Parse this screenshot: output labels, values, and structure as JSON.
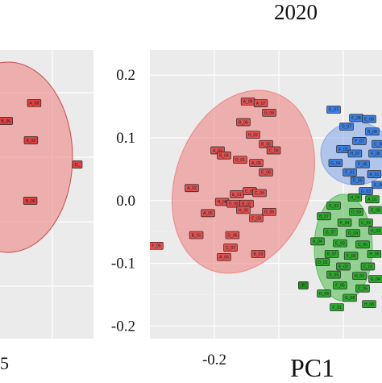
{
  "chart_data": [
    {
      "type": "scatter",
      "title": "",
      "xlabel": "",
      "ylabel": "",
      "x_tick_labels": [],
      "bottom_tick_label": "5",
      "series": [
        {
          "name": "",
          "color": "#e0403f",
          "points": [
            {
              "label": "A_08",
              "x": 0.53,
              "y": 0.112
            },
            {
              "label": "B_06",
              "x": 0.09,
              "y": 0.075
            },
            {
              "label": "A_02",
              "x": 0.48,
              "y": 0.035
            },
            {
              "label": "B_08",
              "x": 0.47,
              "y": -0.09
            },
            {
              "label": "D_",
              "x": 1.2,
              "y": -0.015
            }
          ]
        }
      ]
    },
    {
      "type": "scatter",
      "title": "2020",
      "xlabel": "PC1",
      "ylabel": "",
      "xlim": [
        -0.3,
        0.06
      ],
      "ylim": [
        -0.22,
        0.24
      ],
      "x_ticks": [
        -0.2
      ],
      "y_ticks": [
        0.2,
        0.1,
        0.0,
        -0.1,
        -0.2
      ],
      "x_tick_labels": [
        "-0.2"
      ],
      "y_tick_labels": [
        "0.2",
        "0.1",
        "0.0",
        "-0.1",
        "-0.2"
      ],
      "grid": true,
      "ellipses": [
        {
          "color": "#ef8686",
          "cx": -0.155,
          "cy": 0.03,
          "rx": 0.105,
          "ry": 0.15,
          "rotation_deg": 20
        },
        {
          "color": "#8aaae8",
          "cx": 0.02,
          "cy": 0.075,
          "rx": 0.055,
          "ry": 0.05,
          "rotation_deg": 0
        },
        {
          "color": "#58c058",
          "cx": 0.0,
          "cy": -0.075,
          "rx": 0.045,
          "ry": 0.085,
          "rotation_deg": 0
        }
      ],
      "series": [
        {
          "name": "",
          "color": "#e05050",
          "points": [
            {
              "label": "A_08",
              "x": -0.148,
              "y": 0.158
            },
            {
              "label": "A_07",
              "x": -0.128,
              "y": 0.155
            },
            {
              "label": "G_06",
              "x": -0.115,
              "y": 0.14
            },
            {
              "label": "B_06",
              "x": -0.155,
              "y": 0.125
            },
            {
              "label": "H_02",
              "x": -0.14,
              "y": 0.105
            },
            {
              "label": "B_05",
              "x": -0.12,
              "y": 0.09
            },
            {
              "label": "C_08",
              "x": -0.108,
              "y": 0.08
            },
            {
              "label": "A_03",
              "x": -0.195,
              "y": 0.08
            },
            {
              "label": "B_04",
              "x": -0.185,
              "y": 0.072
            },
            {
              "label": "D_01",
              "x": -0.16,
              "y": 0.065
            },
            {
              "label": "A_06",
              "x": -0.135,
              "y": 0.06
            },
            {
              "label": "E_08",
              "x": -0.12,
              "y": 0.045
            },
            {
              "label": "A_02",
              "x": -0.235,
              "y": 0.02
            },
            {
              "label": "E_01",
              "x": -0.165,
              "y": 0.01
            },
            {
              "label": "C_05",
              "x": -0.145,
              "y": 0.015
            },
            {
              "label": "C_04",
              "x": -0.13,
              "y": 0.012
            },
            {
              "label": "H_08",
              "x": -0.188,
              "y": -0.002
            },
            {
              "label": "D_08",
              "x": -0.17,
              "y": -0.005
            },
            {
              "label": "B_02",
              "x": -0.15,
              "y": -0.005
            },
            {
              "label": "H_05",
              "x": -0.155,
              "y": -0.015
            },
            {
              "label": "A_06",
              "x": -0.21,
              "y": -0.02
            },
            {
              "label": "G_06",
              "x": -0.115,
              "y": -0.018
            },
            {
              "label": "C_03",
              "x": -0.135,
              "y": -0.028
            },
            {
              "label": "B_01",
              "x": -0.228,
              "y": -0.055
            },
            {
              "label": "C_07",
              "x": -0.175,
              "y": -0.075
            },
            {
              "label": "D_06",
              "x": -0.172,
              "y": -0.055
            },
            {
              "label": "F_06",
              "x": -0.29,
              "y": -0.072
            },
            {
              "label": "B_03",
              "x": -0.132,
              "y": -0.085
            },
            {
              "label": "A_05",
              "x": -0.185,
              "y": -0.09
            }
          ]
        },
        {
          "name": "",
          "color": "#3d7fe0",
          "points": [
            {
              "label": "E_07",
              "x": -0.015,
              "y": 0.145
            },
            {
              "label": "F_08",
              "x": 0.02,
              "y": 0.132
            },
            {
              "label": "E_08",
              "x": 0.04,
              "y": 0.13
            },
            {
              "label": "D_07",
              "x": 0.005,
              "y": 0.118
            },
            {
              "label": "B_08",
              "x": 0.045,
              "y": 0.11
            },
            {
              "label": "F_07",
              "x": 0.025,
              "y": 0.095
            },
            {
              "label": "C_08",
              "x": 0.055,
              "y": 0.09
            },
            {
              "label": "F_02",
              "x": 0.0,
              "y": 0.082
            },
            {
              "label": "H_07",
              "x": 0.018,
              "y": 0.075
            },
            {
              "label": "F_06",
              "x": 0.05,
              "y": 0.075
            },
            {
              "label": "G_04",
              "x": -0.012,
              "y": 0.06
            },
            {
              "label": "F_05",
              "x": 0.03,
              "y": 0.058
            },
            {
              "label": "F_01",
              "x": 0.01,
              "y": 0.045
            },
            {
              "label": "A_01",
              "x": 0.048,
              "y": 0.042
            },
            {
              "label": "D_05",
              "x": 0.022,
              "y": 0.032
            },
            {
              "label": "E_06",
              "x": 0.055,
              "y": 0.025
            },
            {
              "label": "G_03",
              "x": 0.035,
              "y": 0.015
            }
          ]
        },
        {
          "name": "",
          "color": "#2ea82e",
          "points": [
            {
              "label": "H_04",
              "x": 0.018,
              "y": 0.005
            },
            {
              "label": "A_01",
              "x": 0.045,
              "y": 0.002
            },
            {
              "label": "G_02",
              "x": -0.015,
              "y": -0.008
            },
            {
              "label": "D_03",
              "x": 0.02,
              "y": -0.018
            },
            {
              "label": "E_05",
              "x": 0.05,
              "y": -0.015
            },
            {
              "label": "B_07",
              "x": -0.03,
              "y": -0.025
            },
            {
              "label": "F_04",
              "x": 0.002,
              "y": -0.035
            },
            {
              "label": "C_02",
              "x": 0.035,
              "y": -0.035
            },
            {
              "label": "G_07",
              "x": -0.02,
              "y": -0.05
            },
            {
              "label": "D_04",
              "x": 0.015,
              "y": -0.052
            },
            {
              "label": "H_03",
              "x": 0.05,
              "y": -0.048
            },
            {
              "label": "A_04",
              "x": -0.04,
              "y": -0.065
            },
            {
              "label": "E_03",
              "x": -0.005,
              "y": -0.068
            },
            {
              "label": "C_06",
              "x": 0.03,
              "y": -0.07
            },
            {
              "label": "B_07",
              "x": -0.018,
              "y": -0.085
            },
            {
              "label": "F_03",
              "x": 0.012,
              "y": -0.088
            },
            {
              "label": "H_06",
              "x": 0.048,
              "y": -0.085
            },
            {
              "label": "D_02",
              "x": -0.032,
              "y": -0.098
            },
            {
              "label": "E_02",
              "x": 0.0,
              "y": -0.105
            },
            {
              "label": "C_01",
              "x": 0.038,
              "y": -0.105
            },
            {
              "label": "G_05",
              "x": -0.015,
              "y": -0.118
            },
            {
              "label": "H_01",
              "x": 0.025,
              "y": -0.12
            },
            {
              "label": "E_04",
              "x": 0.05,
              "y": -0.125
            },
            {
              "label": "F_05",
              "x": -0.005,
              "y": -0.135
            },
            {
              "label": "C_05",
              "x": 0.03,
              "y": -0.14
            },
            {
              "label": "D_08",
              "x": -0.03,
              "y": -0.148
            },
            {
              "label": "G_08",
              "x": 0.01,
              "y": -0.155
            },
            {
              "label": "F_01",
              "x": -0.01,
              "y": -0.17
            },
            {
              "label": "H_08",
              "x": 0.04,
              "y": -0.165
            }
          ]
        },
        {
          "name": "",
          "color": "#1f8a1f",
          "points": [
            {
              "label": "F",
              "x": -0.062,
              "y": -0.135
            }
          ]
        }
      ]
    }
  ]
}
